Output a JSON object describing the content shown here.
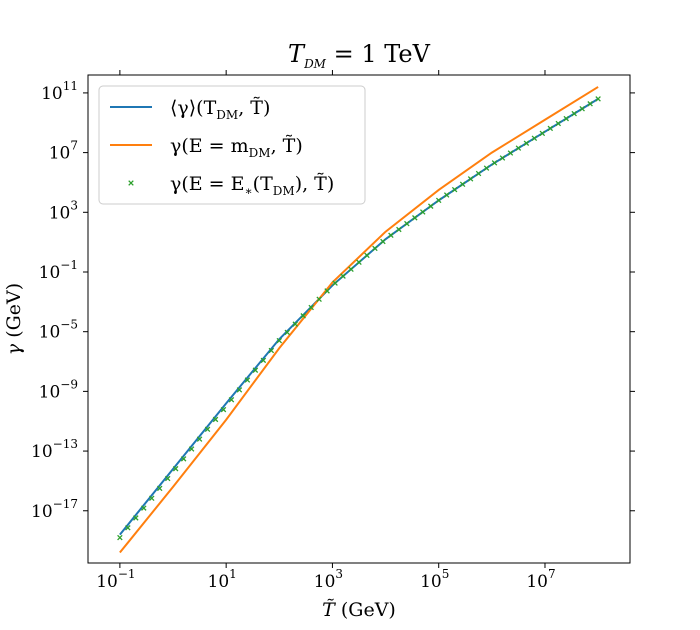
{
  "chart_data": {
    "type": "line",
    "title": {
      "main": "T",
      "sub": "DM",
      "rest": " = 1 TeV"
    },
    "xlabel": {
      "var": "T̃",
      "unit": " (GeV)"
    },
    "ylabel": {
      "var": "γ",
      "unit": " (GeV)"
    },
    "xscale": "log",
    "yscale": "log",
    "xlim_log10": [
      -1.6,
      8.6
    ],
    "ylim_log10": [
      -20.5,
      12.2
    ],
    "xticks": [
      {
        "exp": -1,
        "base": "10",
        "power": "−1"
      },
      {
        "exp": 1,
        "base": "10",
        "power": "1"
      },
      {
        "exp": 3,
        "base": "10",
        "power": "3"
      },
      {
        "exp": 5,
        "base": "10",
        "power": "5"
      },
      {
        "exp": 7,
        "base": "10",
        "power": "7"
      }
    ],
    "yticks": [
      {
        "exp": 11,
        "base": "10",
        "power": "11"
      },
      {
        "exp": 7,
        "base": "10",
        "power": "7"
      },
      {
        "exp": 3,
        "base": "10",
        "power": "3"
      },
      {
        "exp": -1,
        "base": "10",
        "power": "−1"
      },
      {
        "exp": -5,
        "base": "10",
        "power": "−5"
      },
      {
        "exp": -9,
        "base": "10",
        "power": "−9"
      },
      {
        "exp": -13,
        "base": "10",
        "power": "−13"
      },
      {
        "exp": -17,
        "base": "10",
        "power": "−17"
      }
    ],
    "legend_position": "upper-left",
    "series": [
      {
        "name": "⟨γ⟩(T_DM, T̃)",
        "label": {
          "pre": "⟨γ⟩(T",
          "sub": "DM",
          "post": ", T̃)"
        },
        "style": "line",
        "color": "#1f77b4",
        "x_log10": [
          -1,
          0,
          1,
          2,
          3,
          4,
          5,
          6,
          7,
          8
        ],
        "y_log10": [
          -18.6,
          -14.2,
          -9.8,
          -5.5,
          -1.9,
          1.2,
          3.8,
          6.2,
          8.4,
          10.6
        ]
      },
      {
        "name": "γ(E = m_DM, T̃)",
        "label": {
          "pre": "γ(E = m",
          "sub": "DM",
          "post": ", T̃)"
        },
        "style": "line",
        "color": "#ff7f0e",
        "x_log10": [
          -1,
          0,
          1,
          2,
          3,
          4,
          5,
          6,
          7,
          8
        ],
        "y_log10": [
          -19.8,
          -15.4,
          -10.9,
          -6.1,
          -1.7,
          1.7,
          4.5,
          7.0,
          9.2,
          11.4
        ]
      },
      {
        "name": "γ(E = E_*(T_DM), T̃)",
        "label": {
          "pre": "γ(E = E",
          "sub": "∗",
          "mid": "(T",
          "sub2": "DM",
          "post": "), T̃)"
        },
        "style": "scatter",
        "marker": "x",
        "color": "#2ca02c",
        "x_log10": [
          -1,
          0,
          1,
          2,
          3,
          4,
          5,
          6,
          7,
          8
        ],
        "y_log10": [
          -18.8,
          -14.4,
          -10.0,
          -5.6,
          -1.9,
          1.2,
          3.8,
          6.2,
          8.4,
          10.6
        ]
      }
    ]
  }
}
